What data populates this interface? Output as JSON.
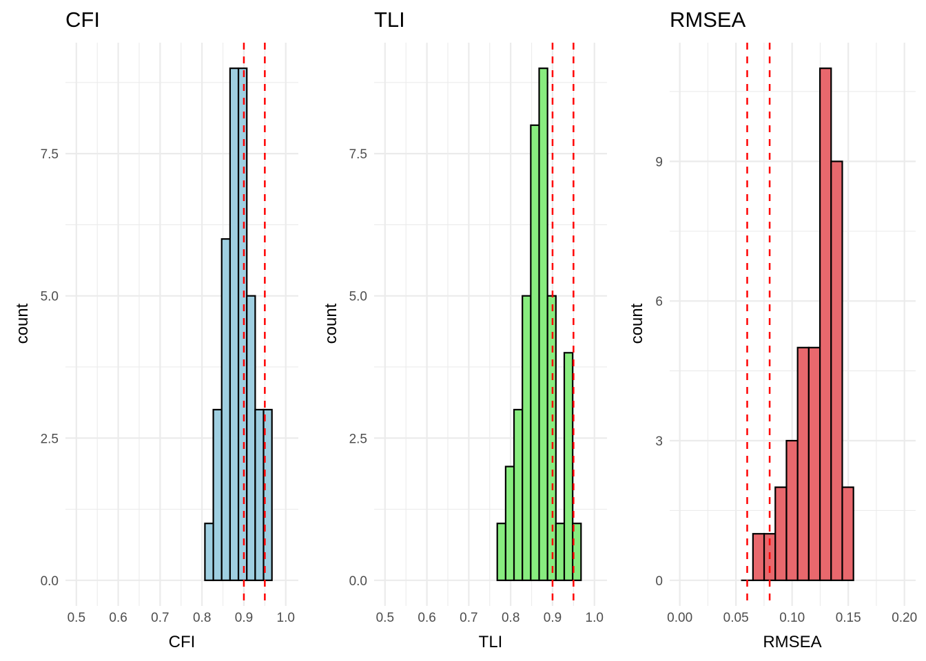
{
  "chart_data": [
    {
      "type": "bar",
      "subtype": "histogram",
      "title": "CFI",
      "xlabel": "CFI",
      "ylabel": "count",
      "fill": "#9fcfe1",
      "xlim": [
        0.474,
        1.03
      ],
      "ylim": [
        -0.45,
        9.45
      ],
      "xticks": [
        0.5,
        0.6,
        0.7,
        0.8,
        0.9,
        1.0
      ],
      "xtick_labels": [
        "0.5",
        "0.6",
        "0.7",
        "0.8",
        "0.9",
        "1.0"
      ],
      "yticks": [
        0,
        2.5,
        5,
        7.5
      ],
      "ytick_labels": [
        "0.0",
        "2.5",
        "5.0",
        "7.5"
      ],
      "bin_start": 0.807,
      "bin_width": 0.02,
      "counts": [
        1,
        3,
        6,
        9,
        9,
        5,
        3,
        3
      ],
      "reference_lines": [
        0.9,
        0.95
      ],
      "reference_color": "#ff0000",
      "grid": true
    },
    {
      "type": "bar",
      "subtype": "histogram",
      "title": "TLI",
      "xlabel": "TLI",
      "ylabel": "count",
      "fill": "#88ec7f",
      "xlim": [
        0.474,
        1.03
      ],
      "ylim": [
        -0.45,
        9.45
      ],
      "xticks": [
        0.5,
        0.6,
        0.7,
        0.8,
        0.9,
        1.0
      ],
      "xtick_labels": [
        "0.5",
        "0.6",
        "0.7",
        "0.8",
        "0.9",
        "1.0"
      ],
      "yticks": [
        0,
        2.5,
        5,
        7.5
      ],
      "ytick_labels": [
        "0.0",
        "2.5",
        "5.0",
        "7.5"
      ],
      "bin_start": 0.768,
      "bin_width": 0.02,
      "counts": [
        1,
        2,
        3,
        5,
        8,
        9,
        5,
        1,
        4,
        1
      ],
      "reference_lines": [
        0.9,
        0.95
      ],
      "reference_color": "#ff0000",
      "grid": true
    },
    {
      "type": "bar",
      "subtype": "histogram",
      "title": "RMSEA",
      "xlabel": "RMSEA",
      "ylabel": "count",
      "fill": "#e8686d",
      "xlim": [
        -0.009,
        0.21
      ],
      "ylim": [
        -0.55,
        11.55
      ],
      "xticks": [
        0.0,
        0.05,
        0.1,
        0.15,
        0.2
      ],
      "xtick_labels": [
        "0.00",
        "0.05",
        "0.10",
        "0.15",
        "0.20"
      ],
      "yticks": [
        0,
        3,
        6,
        9
      ],
      "ytick_labels": [
        "0",
        "3",
        "6",
        "9"
      ],
      "bin_start": 0.0552,
      "bin_width": 0.00994,
      "counts": [
        0,
        1,
        1,
        2,
        3,
        5,
        5,
        11,
        9,
        2
      ],
      "reference_lines": [
        0.06,
        0.08
      ],
      "reference_color": "#ff0000",
      "grid": true
    }
  ]
}
